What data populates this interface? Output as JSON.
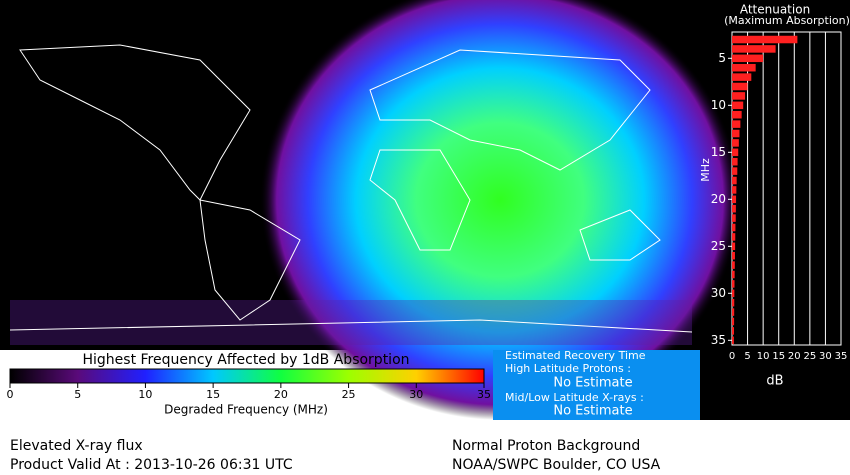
{
  "map": {
    "colorbar": {
      "title": "Highest Frequency Affected by 1dB Absorption",
      "label": "Degraded Frequency (MHz)",
      "clim": [
        0,
        35
      ],
      "ticks": [
        0,
        5,
        10,
        15,
        20,
        25,
        30,
        35
      ],
      "colors": [
        "#000000",
        "#5a0a7a",
        "#2020ff",
        "#00c8ff",
        "#10ff40",
        "#9cff00",
        "#ffd000",
        "#ff0000"
      ]
    }
  },
  "recovery": {
    "title": "Estimated Recovery Time",
    "high_label": "High Latitude Protons :",
    "high_value": "No Estimate",
    "low_label": "Mid/Low Latitude X-rays :",
    "low_value": "No Estimate"
  },
  "footer": {
    "left_1": "Elevated X-ray flux",
    "left_2": "Product Valid At : 2013-10-26 06:31 UTC",
    "right_1": "Normal Proton Background",
    "right_2": "NOAA/SWPC Boulder, CO USA"
  },
  "chart_data": {
    "type": "bar",
    "orientation": "horizontal",
    "title": "Attenuation",
    "subtitle": "(Maximum Absorption)",
    "y_label": "MHz",
    "x_label": "dB",
    "color": "#ff2020",
    "categories": [
      3,
      4,
      5,
      6,
      7,
      8,
      9,
      10,
      11,
      12,
      13,
      14,
      15,
      16,
      17,
      18,
      19,
      20,
      21,
      22,
      23,
      24,
      25,
      26,
      27,
      28,
      29,
      30,
      31,
      32,
      33,
      34,
      35
    ],
    "values": [
      21,
      14,
      10,
      7.6,
      6.2,
      5,
      4.2,
      3.6,
      3.1,
      2.7,
      2.4,
      2.2,
      2,
      1.8,
      1.7,
      1.5,
      1.4,
      1.3,
      1.25,
      1.2,
      1.1,
      1.05,
      1,
      0.95,
      0.9,
      0.85,
      0.8,
      0.75,
      0.72,
      0.7,
      0.67,
      0.64,
      0.6
    ],
    "xlim": [
      0,
      35
    ],
    "xticks": [
      0,
      5,
      10,
      15,
      20,
      25,
      30,
      35
    ],
    "ylim": [
      2.2,
      35.5
    ],
    "yticks": [
      5,
      10,
      15,
      20,
      25,
      30,
      35
    ],
    "grid": true
  }
}
